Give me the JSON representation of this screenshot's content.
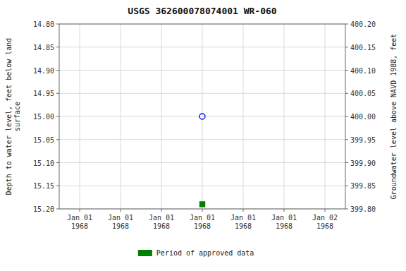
{
  "chart_data": {
    "type": "scatter",
    "title": "USGS 362600078074001 WR-060",
    "ylabel": "Depth to water level, feet below land\nsurface",
    "y2label": "Groundwater level above NAVD 1988, feet",
    "categories": [
      "Jan 01\n1968",
      "Jan 01\n1968",
      "Jan 01\n1968",
      "Jan 01\n1968",
      "Jan 01\n1968",
      "Jan 01\n1968",
      "Jan 02\n1968"
    ],
    "series": [
      {
        "color": "#0000FF",
        "marker": "open-circle",
        "values": [
          null,
          null,
          null,
          15.0,
          null,
          null,
          null
        ]
      },
      {
        "name": "Period of approved data",
        "color": "#008000",
        "marker": "square",
        "values": [
          null,
          null,
          null,
          15.19,
          null,
          null,
          null
        ]
      }
    ],
    "ylim": [
      15.2,
      14.8
    ],
    "yticks": [
      {
        "value": 14.8,
        "label": "14.80"
      },
      {
        "value": 14.85,
        "label": "14.85"
      },
      {
        "value": 14.9,
        "label": "14.90"
      },
      {
        "value": 14.95,
        "label": "14.95"
      },
      {
        "value": 15.0,
        "label": "15.00"
      },
      {
        "value": 15.05,
        "label": "15.05"
      },
      {
        "value": 15.1,
        "label": "15.10"
      },
      {
        "value": 15.15,
        "label": "15.15"
      },
      {
        "value": 15.2,
        "label": "15.20"
      }
    ],
    "y2lim": [
      399.8,
      400.2
    ],
    "y2ticks": [
      {
        "value": 399.8,
        "label": "399.80"
      },
      {
        "value": 399.85,
        "label": "399.85"
      },
      {
        "value": 399.9,
        "label": "399.90"
      },
      {
        "value": 399.95,
        "label": "399.95"
      },
      {
        "value": 400.0,
        "label": "400.00"
      },
      {
        "value": 400.05,
        "label": "400.05"
      },
      {
        "value": 400.1,
        "label": "400.10"
      },
      {
        "value": 400.15,
        "label": "400.15"
      },
      {
        "value": 400.2,
        "label": "400.20"
      }
    ],
    "grid": true,
    "legend": "bottom"
  }
}
